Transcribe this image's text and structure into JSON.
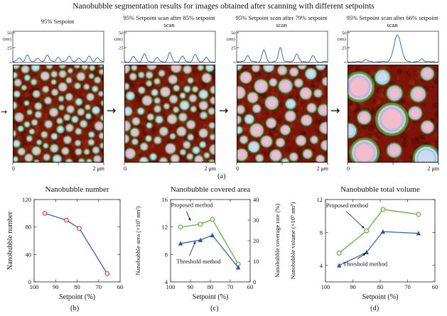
{
  "title": "Nanobubble segmentation results for images obtained after scanning with different setpoints",
  "labels": {
    "a": "(a)",
    "b": "(b)",
    "c": "(c)",
    "d": "(d)"
  },
  "glyphs": {
    "arrow": "→"
  },
  "profile_axis": {
    "unit": "(nm)",
    "ticks": [
      50,
      25,
      0
    ],
    "max": 50
  },
  "scale_bar": {
    "left": "0",
    "right": "2 μm"
  },
  "panels": [
    {
      "label": "95% Setpoint",
      "profile_peaks": [
        [
          0.07,
          7
        ],
        [
          0.16,
          11
        ],
        [
          0.27,
          6
        ],
        [
          0.38,
          12
        ],
        [
          0.5,
          8
        ],
        [
          0.62,
          10
        ],
        [
          0.73,
          6
        ],
        [
          0.84,
          9
        ],
        [
          0.93,
          7
        ]
      ],
      "bubbles": {
        "count": 95,
        "radius": [
          3.5,
          6.5
        ]
      }
    },
    {
      "label": "95% Setpoint scan after 85% setpoint scan",
      "profile_peaks": [
        [
          0.1,
          9
        ],
        [
          0.22,
          13
        ],
        [
          0.36,
          7
        ],
        [
          0.5,
          15
        ],
        [
          0.64,
          9
        ],
        [
          0.78,
          12
        ],
        [
          0.9,
          7
        ]
      ],
      "bubbles": {
        "count": 78,
        "radius": [
          4,
          7.5
        ]
      }
    },
    {
      "label": "95% Setpoint scan after 79% setpoint scan",
      "profile_peaks": [
        [
          0.12,
          11
        ],
        [
          0.3,
          20
        ],
        [
          0.48,
          24
        ],
        [
          0.66,
          14
        ],
        [
          0.84,
          10
        ]
      ],
      "bubbles": {
        "count": 48,
        "radius": [
          5.5,
          10
        ]
      }
    },
    {
      "label": "95% Setpoint scan after 66% setpoint scan",
      "profile_peaks": [
        [
          0.55,
          45,
          0.055
        ],
        [
          0.2,
          4
        ],
        [
          0.82,
          5
        ]
      ],
      "bubbles": {
        "count": 13,
        "radius": [
          9,
          24
        ]
      }
    }
  ],
  "colors": {
    "afm_bg": "#7e150b",
    "afm_dark": "rgba(50,8,4,0.30)",
    "afm_light": "rgba(200,92,38,0.16)",
    "bubble_fill": "#f2bccd",
    "bubble_fill_alt": "#cfdcf0",
    "bubble_ring": "#9fc0ea",
    "bubble_outline": "#37a03c",
    "profile_line": "#2b5fb0",
    "line_blue": "#2456b0",
    "marker_red": "#e03131",
    "green": "#57a639"
  },
  "chart_data": [
    {
      "type": "line",
      "title": "Nanobubble number",
      "xlabel": "Setpoint (%)",
      "ylabel": "Nanobubble number",
      "xlim": [
        100,
        60
      ],
      "xticks": [
        100,
        90,
        80,
        70,
        60
      ],
      "ylim": [
        0,
        120
      ],
      "yticks": [
        0,
        40,
        80,
        120
      ],
      "series": [
        {
          "name": "Nanobubble number",
          "x": [
            95,
            85,
            79,
            66
          ],
          "values": [
            100,
            90,
            78,
            12
          ],
          "color_line": "#2456b0",
          "color_marker": "#e03131",
          "marker": "circle-open"
        }
      ],
      "annotations": []
    },
    {
      "type": "line",
      "title": "Nanobubble covered area",
      "xlabel": "Setpoint (%)",
      "ylabel": "Nanobubble area (×10⁵ nm²)",
      "ylabel2": "Nanobubble coverage rate (%)",
      "xlim": [
        100,
        60
      ],
      "xticks": [
        100,
        90,
        80,
        70,
        60
      ],
      "ylim": [
        4,
        16
      ],
      "yticks": [
        4,
        8,
        12,
        16
      ],
      "y2lim": [
        0,
        40
      ],
      "y2ticks": [
        0,
        10,
        20,
        30,
        40
      ],
      "series": [
        {
          "name": "Proposed method",
          "x": [
            95,
            85,
            79,
            66
          ],
          "values": [
            12.0,
            12.4,
            13.1,
            6.6
          ],
          "color_line": "#57a639",
          "color_marker": "#57a639",
          "marker": "circle-open"
        },
        {
          "name": "Threshold method",
          "x": [
            95,
            85,
            79,
            66
          ],
          "values": [
            9.6,
            10.1,
            10.8,
            6.1
          ],
          "color_line": "#2456b0",
          "color_marker": "#2456b0",
          "marker": "triangle"
        }
      ],
      "annotations": [
        {
          "text": "Proposed method",
          "tx": 99.8,
          "ty": 15.2,
          "x1": 92.0,
          "y1": 14.3,
          "x2": 90.0,
          "y2": 12.9
        },
        {
          "text": "Threshold method",
          "tx": 97.0,
          "ty": 7.0,
          "x1": 90.5,
          "y1": 7.8,
          "x2": 87.5,
          "y2": 9.9
        }
      ]
    },
    {
      "type": "line",
      "title": "Nanobubble total volume",
      "xlabel": "Setpoint (%)",
      "ylabel": "Nanobubble volume (×10⁹ nm³)",
      "xlim": [
        100,
        60
      ],
      "xticks": [
        100,
        90,
        80,
        70,
        60
      ],
      "ylim": [
        2,
        12
      ],
      "yticks": [
        4,
        8,
        12
      ],
      "series": [
        {
          "name": "Proposed method",
          "x": [
            95,
            85,
            79,
            66
          ],
          "values": [
            5.5,
            8.2,
            10.8,
            10.2
          ],
          "color_line": "#57a639",
          "color_marker": "#57a639",
          "marker": "circle-open"
        },
        {
          "name": "Threshold method",
          "x": [
            95,
            85,
            79,
            66
          ],
          "values": [
            4.0,
            5.6,
            8.1,
            7.9
          ],
          "color_line": "#2456b0",
          "color_marker": "#2456b0",
          "marker": "triangle"
        }
      ],
      "annotations": [
        {
          "text": "Proposed method",
          "tx": 99.8,
          "ty": 11.3,
          "x1": 92.5,
          "y1": 10.6,
          "x2": 85.8,
          "y2": 8.5
        },
        {
          "text": "Threshold method",
          "tx": 93.5,
          "ty": 4.2,
          "x1": 88.3,
          "y1": 4.8,
          "x2": 85.3,
          "y2": 5.45
        }
      ]
    }
  ]
}
